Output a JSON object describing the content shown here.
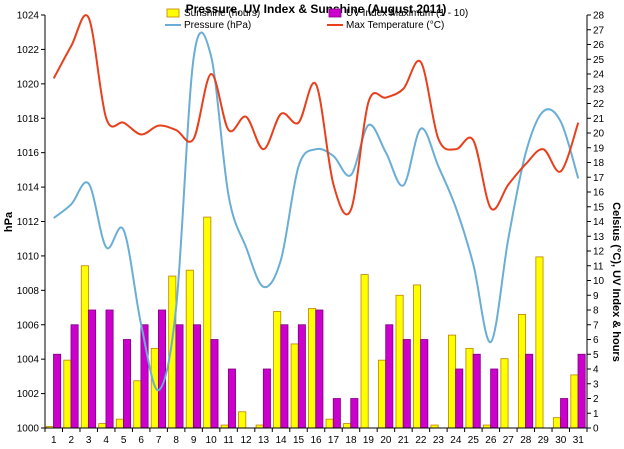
{
  "chart_data": {
    "type": "bar",
    "title": "Pressure, UV Index & Sunshine (August 2011)",
    "ylabel_left": "hPa",
    "ylabel_right": "Celsius (°C), UV Index & hours",
    "categories": [
      "1",
      "2",
      "3",
      "4",
      "5",
      "6",
      "7",
      "8",
      "9",
      "10",
      "11",
      "12",
      "13",
      "14",
      "15",
      "16",
      "17",
      "18",
      "19",
      "20",
      "21",
      "22",
      "23",
      "24",
      "25",
      "26",
      "27",
      "28",
      "29",
      "30",
      "31"
    ],
    "ylim_left": [
      1000,
      1024
    ],
    "yticks_left": [
      1000,
      1002,
      1004,
      1006,
      1008,
      1010,
      1012,
      1014,
      1016,
      1018,
      1020,
      1022,
      1024
    ],
    "ylim_right": [
      0,
      28
    ],
    "yticks_right": [
      0,
      1,
      2,
      3,
      4,
      5,
      6,
      7,
      8,
      9,
      10,
      11,
      12,
      13,
      14,
      15,
      16,
      17,
      18,
      19,
      20,
      21,
      22,
      23,
      24,
      25,
      26,
      27,
      28
    ],
    "legend_position": "top",
    "series": [
      {
        "name": "Sunshine (hours)",
        "kind": "bar",
        "axis": "right",
        "color": "#ffff00",
        "edge": "#c08000",
        "values": [
          0.1,
          4.6,
          11.0,
          0.3,
          0.6,
          3.2,
          5.4,
          10.3,
          10.7,
          14.3,
          0.2,
          1.1,
          0.2,
          7.9,
          5.7,
          8.1,
          0.6,
          0.3,
          10.4,
          4.6,
          9.0,
          9.7,
          0.2,
          6.3,
          5.4,
          0.2,
          4.7,
          7.7,
          11.6,
          0.7,
          3.6
        ]
      },
      {
        "name": "UV Index Maximum (1 - 10)",
        "kind": "bar",
        "axis": "right",
        "color": "#cc00cc",
        "edge": "#800080",
        "values": [
          5,
          7,
          8,
          8,
          6,
          7,
          8,
          7,
          7,
          6,
          4,
          0,
          4,
          7,
          7,
          8,
          2,
          2,
          0,
          7,
          6,
          6,
          0,
          4,
          5,
          4,
          0,
          5,
          0,
          2,
          5
        ]
      },
      {
        "name": "Pressure (hPa)",
        "kind": "line",
        "axis": "left",
        "color": "#6aaed6",
        "values": [
          1012.2,
          1013.0,
          1014.2,
          1010.5,
          1011.5,
          1006.0,
          1002.2,
          1007.0,
          1021.5,
          1021.6,
          1013.5,
          1010.5,
          1008.2,
          1009.8,
          1015.2,
          1016.2,
          1015.8,
          1014.7,
          1017.6,
          1016.0,
          1014.1,
          1017.4,
          1015.2,
          1012.8,
          1009.5,
          1005.0,
          1011.0,
          1016.0,
          1018.4,
          1017.8,
          1014.5
        ]
      },
      {
        "name": "Max Temperature (°C)",
        "kind": "line",
        "axis": "right",
        "color": "#e8401c",
        "values": [
          23.7,
          25.9,
          27.8,
          21.0,
          20.7,
          19.9,
          20.5,
          20.2,
          19.6,
          24.0,
          20.2,
          21.1,
          18.9,
          21.3,
          20.7,
          23.3,
          16.5,
          14.8,
          22.1,
          22.4,
          23.0,
          24.8,
          19.6,
          18.9,
          19.5,
          14.9,
          16.5,
          17.9,
          18.9,
          17.4,
          20.7
        ]
      }
    ]
  }
}
